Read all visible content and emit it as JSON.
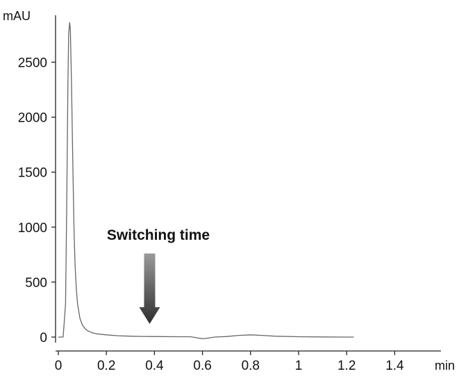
{
  "chart_data": {
    "type": "line",
    "title": "",
    "xlabel": "min",
    "ylabel": "mAU",
    "xlim": [
      0,
      1.55
    ],
    "ylim": [
      0,
      2870
    ],
    "x_ticks": [
      0,
      0.2,
      0.4,
      0.6,
      0.8,
      1,
      1.2,
      1.4
    ],
    "x_tick_labels": [
      "0",
      "0.2",
      "0.4",
      "0.6",
      "0.8",
      "1",
      "1.2",
      "1.4"
    ],
    "y_ticks": [
      0,
      500,
      1000,
      1500,
      2000,
      2500
    ],
    "y_tick_labels": [
      "0",
      "500",
      "1000",
      "1500",
      "2000",
      "2500"
    ],
    "grid": false,
    "series": [
      {
        "color": "#666666",
        "x": [
          0,
          0.02,
          0.03,
          0.035,
          0.04,
          0.043,
          0.047,
          0.05,
          0.055,
          0.06,
          0.065,
          0.07,
          0.075,
          0.08,
          0.09,
          0.1,
          0.11,
          0.12,
          0.14,
          0.16,
          0.2,
          0.25,
          0.3,
          0.35,
          0.4,
          0.5,
          0.55,
          0.6,
          0.62,
          0.65,
          0.7,
          0.75,
          0.8,
          0.85,
          0.9,
          1.0,
          1.1,
          1.2,
          1.23
        ],
        "y": [
          0,
          0,
          300,
          1200,
          2300,
          2760,
          2860,
          2800,
          2300,
          1600,
          1000,
          640,
          430,
          300,
          170,
          110,
          80,
          60,
          40,
          30,
          20,
          12,
          8,
          6,
          5,
          3,
          3,
          -15,
          -10,
          0,
          5,
          15,
          20,
          15,
          8,
          3,
          1,
          0,
          0
        ]
      }
    ],
    "annotations": [
      {
        "text": "Switching time",
        "arrow_x": 0.38,
        "arrow_y_top": 760,
        "arrow_y_bottom": 120
      }
    ]
  }
}
